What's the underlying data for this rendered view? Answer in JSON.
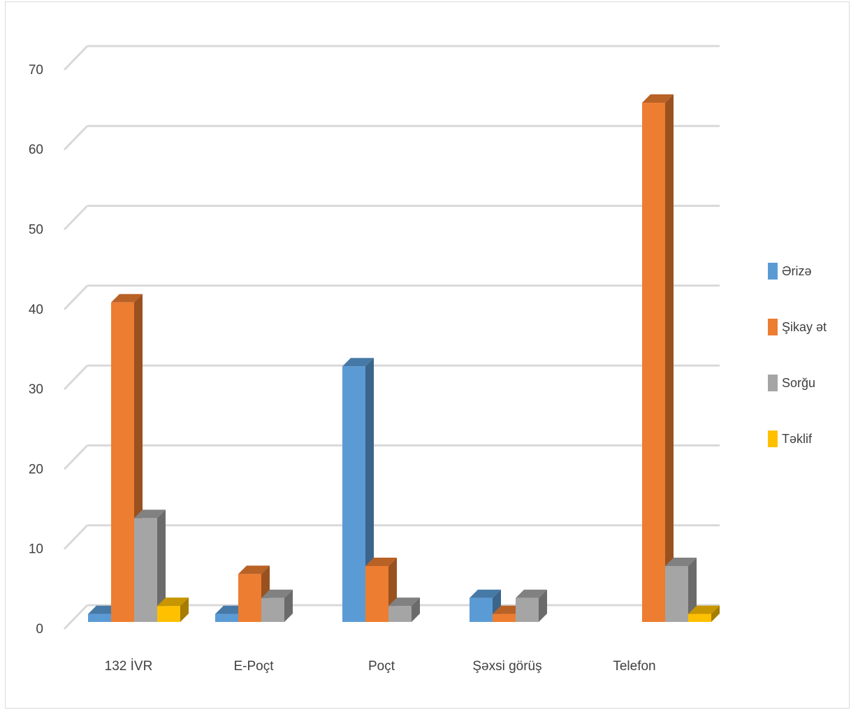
{
  "chart_data": {
    "type": "bar",
    "subtype": "3d-clustered-column",
    "categories": [
      "132  İVR",
      "E-Poçt",
      "Poçt",
      "Şəxsi görüş",
      "Telefon"
    ],
    "series": [
      {
        "name": "Ərizə",
        "color": "#5b9bd5",
        "values": [
          1,
          1,
          32,
          3,
          0
        ]
      },
      {
        "name": "Şikay ət",
        "color": "#ed7d31",
        "values": [
          40,
          6,
          7,
          1,
          65
        ]
      },
      {
        "name": "Sorğu",
        "color": "#a5a5a5",
        "values": [
          13,
          3,
          2,
          3,
          7
        ]
      },
      {
        "name": "Təklif",
        "color": "#ffc000",
        "values": [
          2,
          0,
          0,
          0,
          1
        ]
      }
    ],
    "ylim": [
      0,
      70
    ],
    "yticks": [
      "0",
      "10",
      "20",
      "30",
      "40",
      "50",
      "60",
      "70"
    ],
    "grid": true,
    "legend_position": "right",
    "title": "",
    "xlabel": "",
    "ylabel": ""
  }
}
